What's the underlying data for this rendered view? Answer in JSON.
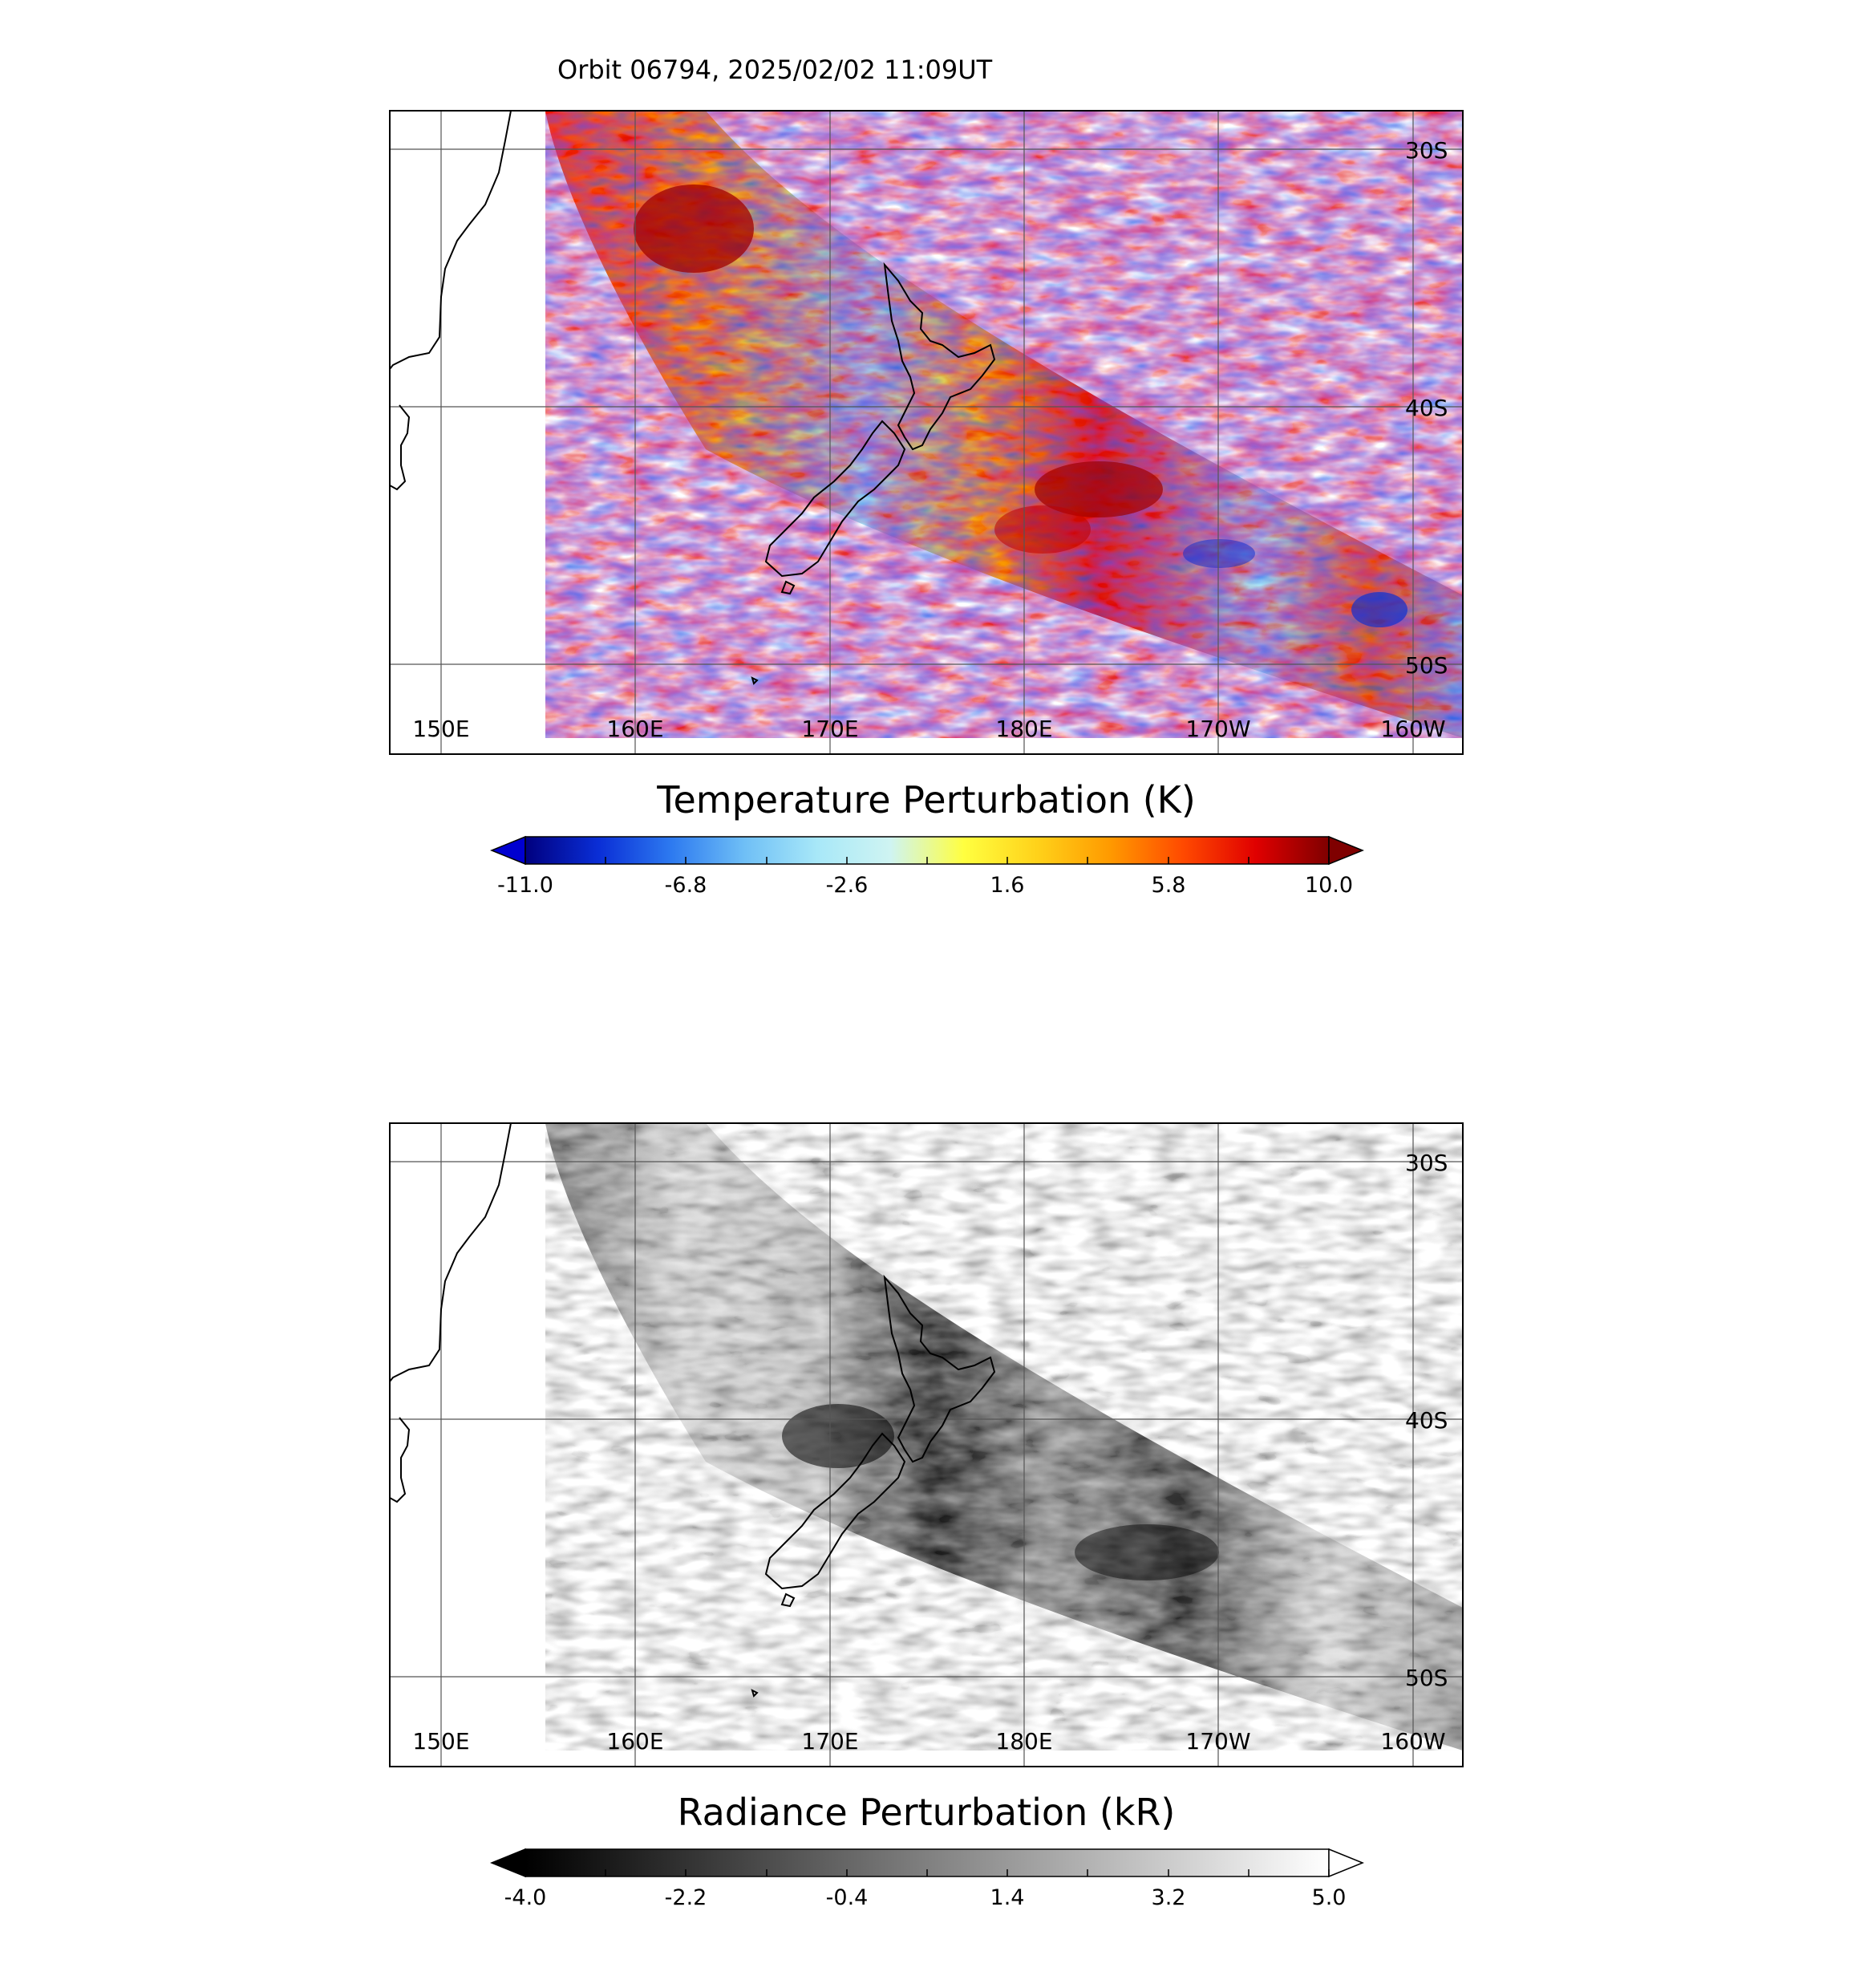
{
  "header": {
    "title": "Orbit 06794, 2025/02/02 11:09UT"
  },
  "axes": {
    "lon_labels": [
      "150E",
      "160E",
      "170E",
      "180E",
      "170W",
      "160W"
    ],
    "lat_labels": [
      "30S",
      "40S",
      "50S"
    ]
  },
  "maps": [
    {
      "id": "temperature",
      "colorbar_title": "Temperature Perturbation (K)",
      "ticks": [
        "-11.0",
        "-6.8",
        "-2.6",
        "1.6",
        "5.8",
        "10.0"
      ],
      "range": [
        -11.0,
        10.0
      ],
      "colors": [
        "#00007f",
        "#0a2ed6",
        "#2d7af0",
        "#6fbff6",
        "#a8e8f8",
        "#cff4f2",
        "#ffff40",
        "#ffd21a",
        "#ff9a00",
        "#ff4a00",
        "#e00000",
        "#7f0000"
      ],
      "extend_low_color": "#0000d0",
      "extend_high_color": "#7f0000"
    },
    {
      "id": "radiance",
      "colorbar_title": "Radiance Perturbation (kR)",
      "ticks": [
        "-4.0",
        "-2.2",
        "-0.4",
        "1.4",
        "3.2",
        "5.0"
      ],
      "range": [
        -4.0,
        5.0
      ],
      "colors": [
        "#000000",
        "#2a2a2a",
        "#555555",
        "#808080",
        "#aaaaaa",
        "#d4d4d4",
        "#ffffff"
      ],
      "extend_low_color": "#000000",
      "extend_high_color": "#ffffff"
    }
  ]
}
